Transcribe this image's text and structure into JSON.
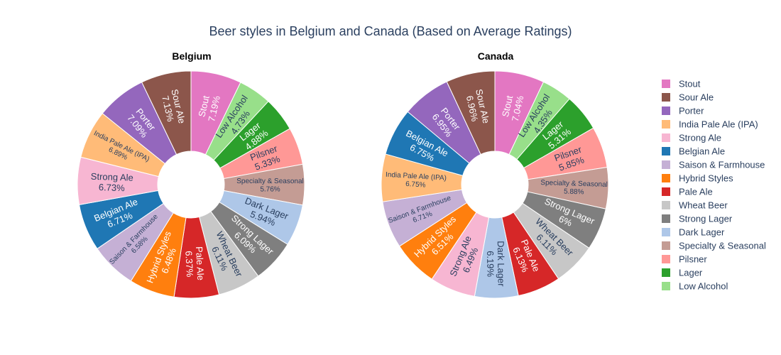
{
  "chart_data": {
    "type": "pie",
    "title": "Beer styles in Belgium and Canada (Based on Average Ratings)",
    "hole": true,
    "legend_placement": "right",
    "colors": {
      "Stout": "#e377c2",
      "Sour Ale": "#8c564b",
      "Porter": "#9467bd",
      "India Pale Ale (IPA)": "#ffbb78",
      "Strong Ale": "#f7b6d2",
      "Belgian Ale": "#1f77b4",
      "Saison & Farmhouse": "#c5b0d5",
      "Hybrid Styles": "#ff7f0e",
      "Pale Ale": "#d62728",
      "Wheat Beer": "#c7c7c7",
      "Strong Lager": "#7f7f7f",
      "Dark Lager": "#aec7e8",
      "Specialty & Seasonal": "#c49c94",
      "Pilsner": "#ff9896",
      "Lager": "#2ca02c",
      "Low Alcohol": "#98df8a"
    },
    "legend": [
      "Stout",
      "Sour Ale",
      "Porter",
      "India Pale Ale (IPA)",
      "Strong Ale",
      "Belgian Ale",
      "Saison & Farmhouse",
      "Hybrid Styles",
      "Pale Ale",
      "Wheat Beer",
      "Strong Lager",
      "Dark Lager",
      "Specialty & Seasonal",
      "Pilsner",
      "Lager",
      "Low Alcohol"
    ],
    "charts": [
      {
        "subtitle": "Belgium",
        "slices": [
          {
            "label": "Stout",
            "percent": "7.19%",
            "value": 7.19
          },
          {
            "label": "Low Alcohol",
            "percent": "4.73%",
            "value": 4.73
          },
          {
            "label": "Lager",
            "percent": "4.88%",
            "value": 4.88
          },
          {
            "label": "Pilsner",
            "percent": "5.33%",
            "value": 5.33
          },
          {
            "label": "Specialty & Seasonal",
            "percent": "5.76%",
            "value": 5.76
          },
          {
            "label": "Dark Lager",
            "percent": "5.94%",
            "value": 5.94
          },
          {
            "label": "Strong Lager",
            "percent": "6.09%",
            "value": 6.09
          },
          {
            "label": "Wheat Beer",
            "percent": "6.11%",
            "value": 6.11
          },
          {
            "label": "Pale Ale",
            "percent": "6.37%",
            "value": 6.37
          },
          {
            "label": "Hybrid Styles",
            "percent": "6.48%",
            "value": 6.48
          },
          {
            "label": "Saison & Farmhouse",
            "percent": "6.58%",
            "value": 6.58
          },
          {
            "label": "Belgian Ale",
            "percent": "6.71%",
            "value": 6.71
          },
          {
            "label": "Strong Ale",
            "percent": "6.73%",
            "value": 6.73
          },
          {
            "label": "India Pale Ale (IPA)",
            "percent": "6.89%",
            "value": 6.89
          },
          {
            "label": "Porter",
            "percent": "7.09%",
            "value": 7.09
          },
          {
            "label": "Sour Ale",
            "percent": "7.13%",
            "value": 7.13
          }
        ]
      },
      {
        "subtitle": "Canada",
        "slices": [
          {
            "label": "Stout",
            "percent": "7.04%",
            "value": 7.04
          },
          {
            "label": "Low Alcohol",
            "percent": "4.35%",
            "value": 4.35
          },
          {
            "label": "Lager",
            "percent": "5.31%",
            "value": 5.31
          },
          {
            "label": "Pilsner",
            "percent": "5.85%",
            "value": 5.85
          },
          {
            "label": "Specialty & Seasonal",
            "percent": "5.88%",
            "value": 5.88
          },
          {
            "label": "Strong Lager",
            "percent": "6%",
            "value": 6.0
          },
          {
            "label": "Wheat Beer",
            "percent": "6.11%",
            "value": 6.11
          },
          {
            "label": "Pale Ale",
            "percent": "6.13%",
            "value": 6.13
          },
          {
            "label": "Dark Lager",
            "percent": "6.19%",
            "value": 6.19
          },
          {
            "label": "Strong Ale",
            "percent": "6.49%",
            "value": 6.49
          },
          {
            "label": "Hybrid Styles",
            "percent": "6.51%",
            "value": 6.51
          },
          {
            "label": "Saison & Farmhouse",
            "percent": "6.71%",
            "value": 6.71
          },
          {
            "label": "India Pale Ale (IPA)",
            "percent": "6.75%",
            "value": 6.75
          },
          {
            "label": "Belgian Ale",
            "percent": "6.75%",
            "value": 6.75
          },
          {
            "label": "Porter",
            "percent": "6.95%",
            "value": 6.95
          },
          {
            "label": "Sour Ale",
            "percent": "6.96%",
            "value": 6.96
          }
        ]
      }
    ]
  }
}
